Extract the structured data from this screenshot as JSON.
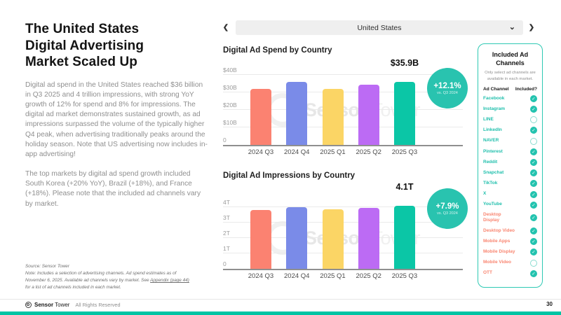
{
  "left_panel": {
    "title_lines": [
      "The United States",
      "Digital Advertising",
      "Market Scaled Up"
    ],
    "paragraph1": "Digital ad spend in the United States reached $36 billion in Q3 2025 and 4 trillion impressions, with strong YoY growth of 12% for spend and 8% for impressions. The digital ad market demonstrates sustained growth, as ad impressions surpassed the volume of the typically higher Q4 peak, when advertising traditionally peaks around the holiday season. Note that US advertising now includes in-app advertising!",
    "paragraph2": "The top markets by digital ad spend growth included South Korea (+20% YoY), Brazil (+18%), and France (+18%). Please note that the included ad channels vary by market.",
    "source_line": "Source: Sensor Tower",
    "note_pre": "Note: Includes a selection of advertising channels. Ad spend estimates as of November 6, 2025. Available ad channels vary by market. See ",
    "note_link": "Appendix (page 44)",
    "note_post": " for a list of ad channels included in each market."
  },
  "selector": {
    "value": "United States"
  },
  "icons": {
    "prev": "❮",
    "next": "❯",
    "dropdown": "⌄",
    "check": "✓"
  },
  "watermark": {
    "bold": "Sensor",
    "light": "Tower"
  },
  "chart_data": [
    {
      "type": "bar",
      "title": "Digital Ad Spend by Country",
      "categories": [
        "2024 Q3",
        "2024 Q4",
        "2025 Q1",
        "2025 Q2",
        "2025 Q3"
      ],
      "values": [
        32.0,
        36.2,
        32.2,
        34.3,
        35.9
      ],
      "unit": "USD billions",
      "ticks": [
        "$40B",
        "$30B",
        "$20B",
        "$10B",
        "0"
      ],
      "tick_values": [
        40,
        30,
        20,
        10,
        0
      ],
      "ylim": [
        0,
        40
      ],
      "xlabel": "",
      "ylabel": "",
      "grid": true,
      "last_value_label": "$35.9B",
      "badge": {
        "delta": "+12.1%",
        "vs": "vs. Q3 2024"
      },
      "bar_colors": [
        "#FB8271",
        "#7A8BE8",
        "#FBD565",
        "#BC6BF4",
        "#0BC6A6"
      ]
    },
    {
      "type": "bar",
      "title": "Digital Ad Impressions by Country",
      "categories": [
        "2024 Q3",
        "2024 Q4",
        "2025 Q1",
        "2025 Q2",
        "2025 Q3"
      ],
      "values": [
        3.8,
        4.0,
        3.85,
        3.95,
        4.1
      ],
      "unit": "trillions of impressions",
      "ticks": [
        "4T",
        "3T",
        "2T",
        "1T",
        "0"
      ],
      "tick_values": [
        4,
        3,
        2,
        1,
        0
      ],
      "ylim": [
        0,
        4
      ],
      "xlabel": "",
      "ylabel": "",
      "grid": true,
      "last_value_label": "4.1T",
      "badge": {
        "delta": "+7.9%",
        "vs": "vs. Q3 2024"
      },
      "bar_colors": [
        "#FB8271",
        "#7A8BE8",
        "#FBD565",
        "#BC6BF4",
        "#0BC6A6"
      ]
    }
  ],
  "channels_panel": {
    "title": "Included Ad Channels",
    "subtitle": "Only select ad channels are available in each market.",
    "col_channel": "Ad Channel",
    "col_included": "Included?",
    "items": [
      {
        "label": "Facebook",
        "included": true,
        "color_key": "channel_teal"
      },
      {
        "label": "Instagram",
        "included": true,
        "color_key": "channel_teal"
      },
      {
        "label": "LINE",
        "included": false,
        "color_key": "channel_teal"
      },
      {
        "label": "LinkedIn",
        "included": true,
        "color_key": "channel_teal"
      },
      {
        "label": "NAVER",
        "included": false,
        "color_key": "channel_teal"
      },
      {
        "label": "Pinterest",
        "included": true,
        "color_key": "channel_teal"
      },
      {
        "label": "Reddit",
        "included": true,
        "color_key": "channel_teal"
      },
      {
        "label": "Snapchat",
        "included": true,
        "color_key": "channel_teal"
      },
      {
        "label": "TikTok",
        "included": true,
        "color_key": "channel_teal"
      },
      {
        "label": "X",
        "included": true,
        "color_key": "channel_teal"
      },
      {
        "label": "YouTube",
        "included": true,
        "color_key": "channel_teal"
      },
      {
        "label": "Desktop Display",
        "included": true,
        "color_key": "channel_salmon"
      },
      {
        "label": "Desktop Video",
        "included": true,
        "color_key": "channel_salmon"
      },
      {
        "label": "Mobile Apps",
        "included": true,
        "color_key": "channel_salmon"
      },
      {
        "label": "Mobile Display",
        "included": true,
        "color_key": "channel_salmon"
      },
      {
        "label": "Mobile Video",
        "included": false,
        "color_key": "channel_salmon"
      },
      {
        "label": "OTT",
        "included": true,
        "color_key": "channel_salmon"
      }
    ]
  },
  "footer": {
    "brand_bold": "Sensor",
    "brand_regular": "Tower",
    "rights": "All Rights Reserved",
    "page_number": "30"
  },
  "colors": {
    "accent_teal": "#00C4A4",
    "badge": "#29C3AF",
    "panel_border": "#2EC9B3",
    "check_on": "#23C3AF",
    "channel_teal": "#1FBFAC",
    "channel_salmon": "#F98570",
    "bar_salmon": "#FB8271",
    "bar_blue": "#7A8BE8",
    "bar_yellow": "#FBD565",
    "bar_purple": "#BC6BF4",
    "bar_teal": "#0BC6A6"
  }
}
